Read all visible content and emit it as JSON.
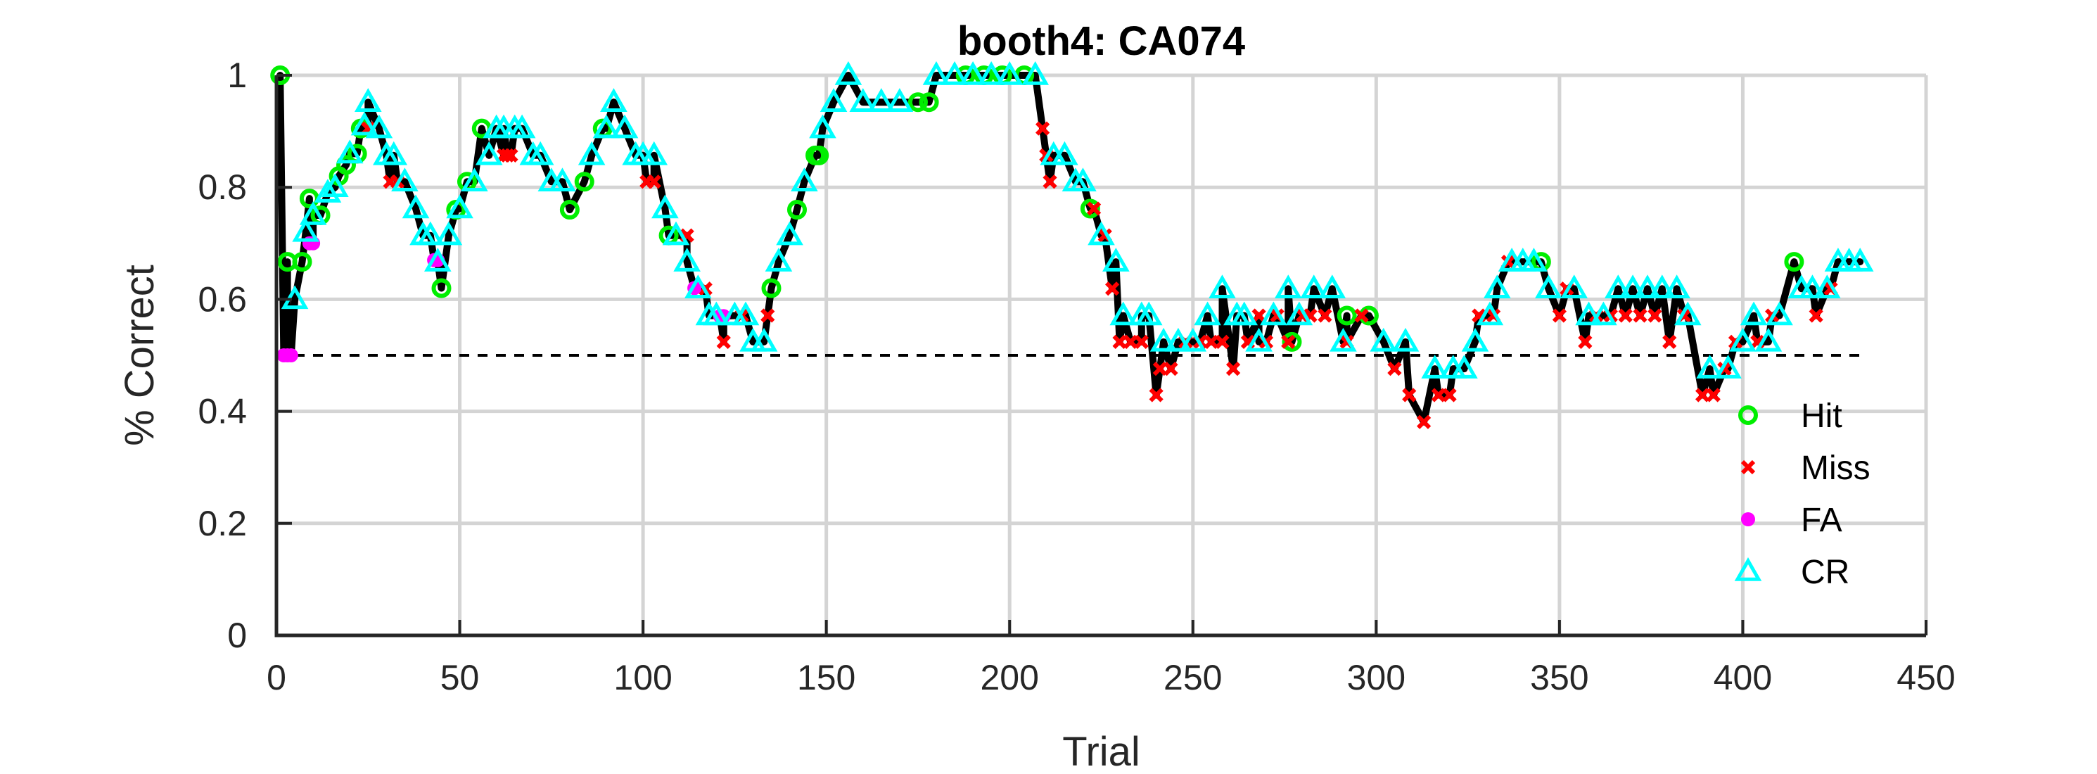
{
  "chart_data": {
    "type": "line",
    "title": "booth4: CA074",
    "xlabel": "Trial",
    "ylabel": "% Correct",
    "xlim": [
      0,
      450
    ],
    "ylim": [
      0,
      1
    ],
    "xticks": [
      0,
      50,
      100,
      150,
      200,
      250,
      300,
      350,
      400,
      450
    ],
    "yticks": [
      0,
      0.2,
      0.4,
      0.6,
      0.8,
      1
    ],
    "grid": true,
    "legend_position": "bottom-right",
    "chance_line": {
      "y": 0.5,
      "x_from": 0,
      "x_to": 432,
      "style": "dashed",
      "color": "#000000"
    },
    "line_color": "#000000",
    "marker_styles": {
      "Hit": {
        "marker": "circle",
        "color": "#00ee00",
        "filled": false
      },
      "Miss": {
        "marker": "x",
        "color": "#ff0000",
        "filled": true
      },
      "FA": {
        "marker": "dot",
        "color": "#ff00ff",
        "filled": true
      },
      "CR": {
        "marker": "triangle",
        "color": "#00ffff",
        "filled": false
      }
    },
    "series_order": [
      "Hit",
      "Miss",
      "FA",
      "CR"
    ],
    "series": [
      {
        "name": "Hit",
        "x": [
          1,
          3,
          7,
          9,
          12,
          17,
          19,
          22,
          23,
          45,
          49,
          52,
          56,
          80,
          84,
          89,
          107,
          135,
          142,
          147,
          148,
          175,
          178,
          188,
          193,
          198,
          204,
          222,
          277,
          292,
          298,
          345,
          414
        ],
        "y": [
          1.0,
          0.667,
          0.667,
          0.78,
          0.75,
          0.82,
          0.84,
          0.86,
          0.905,
          0.62,
          0.76,
          0.81,
          0.905,
          0.76,
          0.81,
          0.905,
          0.714,
          0.62,
          0.76,
          0.857,
          0.857,
          0.952,
          0.952,
          1.0,
          1.0,
          1.0,
          1.0,
          0.762,
          0.524,
          0.571,
          0.571,
          0.667,
          0.667
        ]
      },
      {
        "name": "Miss",
        "x": [
          25,
          31,
          33,
          62,
          63,
          64,
          101,
          103,
          112,
          117,
          122,
          127,
          134,
          209,
          210,
          211,
          223,
          226,
          228,
          230,
          233,
          236,
          240,
          241,
          244,
          248,
          252,
          255,
          258,
          261,
          265,
          268,
          270,
          273,
          276,
          280,
          282,
          286,
          292,
          296,
          305,
          309,
          313,
          317,
          320,
          328,
          332,
          336,
          350,
          352,
          357,
          360,
          364,
          368,
          372,
          376,
          380,
          384,
          389,
          392,
          395,
          398,
          404,
          408,
          420,
          424
        ],
        "y": [
          0.905,
          0.81,
          0.81,
          0.857,
          0.857,
          0.857,
          0.81,
          0.81,
          0.714,
          0.619,
          0.524,
          0.571,
          0.571,
          0.905,
          0.857,
          0.81,
          0.762,
          0.714,
          0.619,
          0.524,
          0.524,
          0.524,
          0.429,
          0.476,
          0.476,
          0.524,
          0.524,
          0.524,
          0.524,
          0.476,
          0.524,
          0.571,
          0.524,
          0.571,
          0.524,
          0.571,
          0.571,
          0.571,
          0.524,
          0.571,
          0.476,
          0.429,
          0.381,
          0.429,
          0.429,
          0.571,
          0.571,
          0.667,
          0.571,
          0.619,
          0.524,
          0.571,
          0.571,
          0.571,
          0.571,
          0.571,
          0.524,
          0.571,
          0.429,
          0.429,
          0.476,
          0.524,
          0.524,
          0.571,
          0.571,
          0.619
        ]
      },
      {
        "name": "FA",
        "x": [
          2,
          3,
          4,
          9,
          10,
          43,
          44,
          114,
          121,
          122
        ],
        "y": [
          0.5,
          0.5,
          0.5,
          0.7,
          0.7,
          0.67,
          0.67,
          0.62,
          0.57,
          0.57
        ]
      },
      {
        "name": "CR",
        "x": [
          5,
          8,
          10,
          14,
          16,
          20,
          24,
          25,
          28,
          30,
          32,
          35,
          38,
          40,
          42,
          44,
          47,
          50,
          54,
          58,
          60,
          62,
          65,
          67,
          70,
          72,
          75,
          78,
          86,
          90,
          92,
          95,
          98,
          100,
          103,
          106,
          109,
          112,
          115,
          118,
          120,
          125,
          128,
          130,
          133,
          137,
          140,
          144,
          149,
          152,
          156,
          160,
          165,
          170,
          180,
          185,
          190,
          195,
          200,
          207,
          212,
          215,
          218,
          220,
          225,
          229,
          231,
          236,
          238,
          242,
          246,
          250,
          254,
          258,
          262,
          264,
          268,
          272,
          276,
          279,
          283,
          288,
          291,
          302,
          308,
          316,
          321,
          324,
          327,
          331,
          333,
          337,
          340,
          343,
          347,
          354,
          358,
          362,
          366,
          370,
          374,
          378,
          382,
          385,
          391,
          396,
          400,
          403,
          407,
          410,
          416,
          419,
          423,
          426,
          429,
          432
        ],
        "y": [
          0.6,
          0.72,
          0.75,
          0.79,
          0.8,
          0.86,
          0.91,
          0.952,
          0.905,
          0.857,
          0.857,
          0.81,
          0.762,
          0.714,
          0.714,
          0.667,
          0.714,
          0.762,
          0.81,
          0.857,
          0.905,
          0.905,
          0.905,
          0.905,
          0.857,
          0.857,
          0.81,
          0.81,
          0.857,
          0.905,
          0.952,
          0.905,
          0.857,
          0.857,
          0.857,
          0.762,
          0.714,
          0.667,
          0.619,
          0.571,
          0.571,
          0.571,
          0.571,
          0.524,
          0.524,
          0.667,
          0.714,
          0.81,
          0.905,
          0.952,
          1.0,
          0.952,
          0.952,
          0.952,
          1.0,
          1.0,
          1.0,
          1.0,
          1.0,
          1.0,
          0.857,
          0.857,
          0.81,
          0.81,
          0.714,
          0.667,
          0.571,
          0.571,
          0.571,
          0.524,
          0.524,
          0.524,
          0.571,
          0.619,
          0.571,
          0.571,
          0.524,
          0.571,
          0.619,
          0.571,
          0.619,
          0.619,
          0.524,
          0.524,
          0.524,
          0.476,
          0.476,
          0.476,
          0.524,
          0.571,
          0.619,
          0.667,
          0.667,
          0.667,
          0.619,
          0.619,
          0.571,
          0.571,
          0.619,
          0.619,
          0.619,
          0.619,
          0.619,
          0.571,
          0.476,
          0.476,
          0.524,
          0.571,
          0.524,
          0.571,
          0.619,
          0.619,
          0.619,
          0.667,
          0.667,
          0.667
        ]
      }
    ]
  }
}
